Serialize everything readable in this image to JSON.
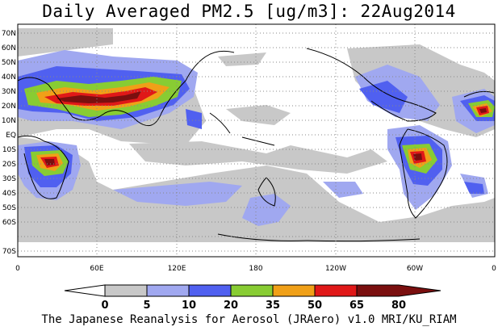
{
  "title": "Daily Averaged PM2.5 [ug/m3]: 22Aug2014",
  "credit": "The Japanese Reanalysis for Aerosol (JRAero) v1.0 MRI/KU_RIAM",
  "map": {
    "projection": "lat-lon, centered 180",
    "lon_ticks": [
      "0",
      "60E",
      "120E",
      "180",
      "120W",
      "60W",
      "0"
    ],
    "lat_ticks": [
      "70N",
      "60N",
      "50N",
      "40N",
      "30N",
      "20N",
      "10N",
      "EQ",
      "10S",
      "20S",
      "30S",
      "40S",
      "50S",
      "60S",
      "70S"
    ],
    "grid": "dotted"
  },
  "colorbar": {
    "levels": [
      "0",
      "5",
      "10",
      "20",
      "35",
      "50",
      "65",
      "80"
    ],
    "colors": [
      "#ffffff",
      "#c8c8c8",
      "#a0a8f0",
      "#5060f0",
      "#88cc33",
      "#f0a018",
      "#e01818",
      "#7a0f0f"
    ]
  },
  "shading_colors": {
    "light_gray": "#c8c8c8",
    "light_blue": "#a0a8f0",
    "blue": "#5060f0",
    "green": "#88cc33",
    "orange": "#f0a018",
    "red": "#e01818",
    "dark_red": "#7a0f0f"
  }
}
